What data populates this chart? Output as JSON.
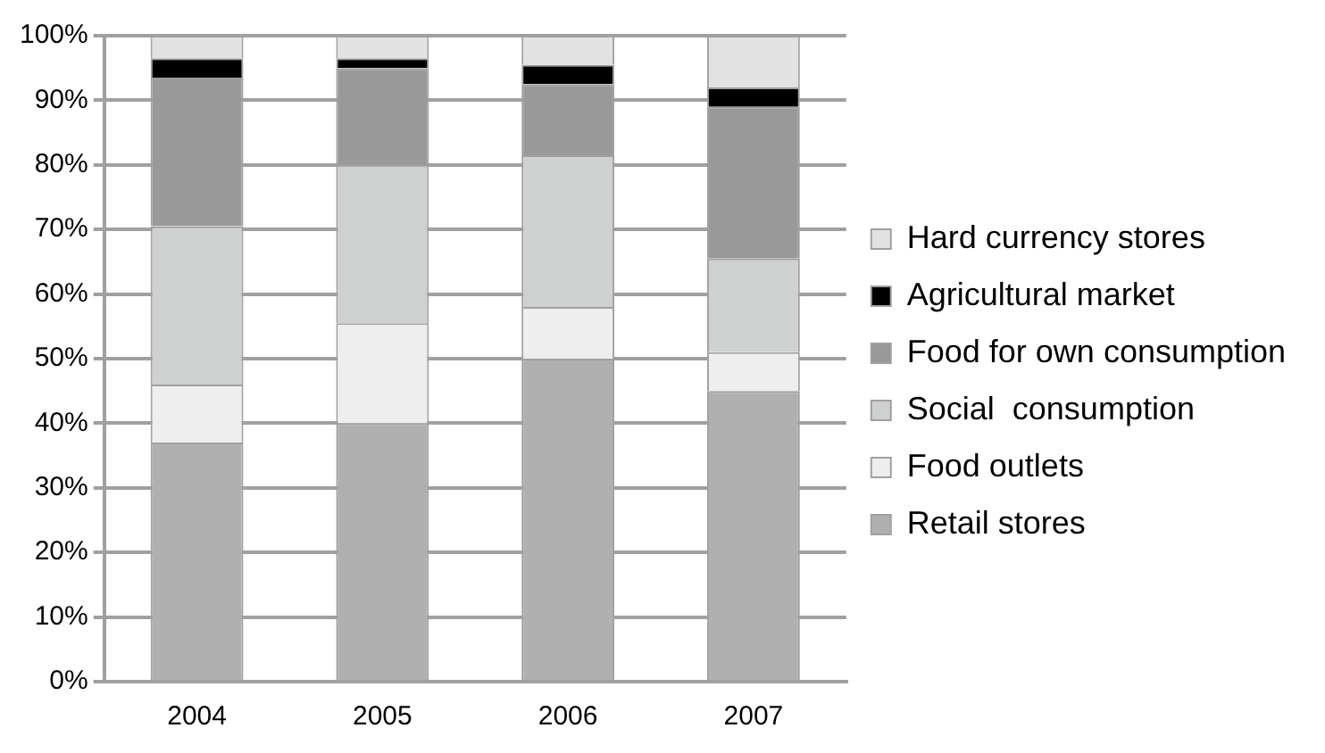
{
  "chart_data": {
    "type": "bar",
    "stacked": true,
    "categories": [
      "2004",
      "2005",
      "2006",
      "2007"
    ],
    "series": [
      {
        "name": "Retail stores",
        "color": "#b0b0b0",
        "values": [
          37,
          40,
          50,
          45
        ]
      },
      {
        "name": "Food outlets",
        "color": "#eeeeee",
        "values": [
          9,
          15.5,
          8,
          6
        ]
      },
      {
        "name": "Social  consumption",
        "color": "#cfd0d0",
        "values": [
          24.5,
          24.5,
          23.5,
          14.5
        ]
      },
      {
        "name": "Food for own consumption",
        "color": "#999999",
        "values": [
          23,
          15,
          11,
          23.5
        ]
      },
      {
        "name": "Agricultural market",
        "color": "#000000",
        "values": [
          3,
          1.5,
          3,
          3
        ]
      },
      {
        "name": "Hard currency stores",
        "color": "#e2e2e2",
        "values": [
          3.5,
          3.5,
          4.5,
          8
        ]
      }
    ],
    "ylim": [
      0,
      100
    ],
    "yticks": [
      {
        "value": 0,
        "label": "0%"
      },
      {
        "value": 10,
        "label": "10%"
      },
      {
        "value": 20,
        "label": "20%"
      },
      {
        "value": 30,
        "label": "30%"
      },
      {
        "value": 40,
        "label": "40%"
      },
      {
        "value": 50,
        "label": "50%"
      },
      {
        "value": 60,
        "label": "60%"
      },
      {
        "value": 70,
        "label": "70%"
      },
      {
        "value": 80,
        "label": "80%"
      },
      {
        "value": 90,
        "label": "90%"
      },
      {
        "value": 100,
        "label": "100%"
      }
    ],
    "grid": "y",
    "legend": "right"
  }
}
